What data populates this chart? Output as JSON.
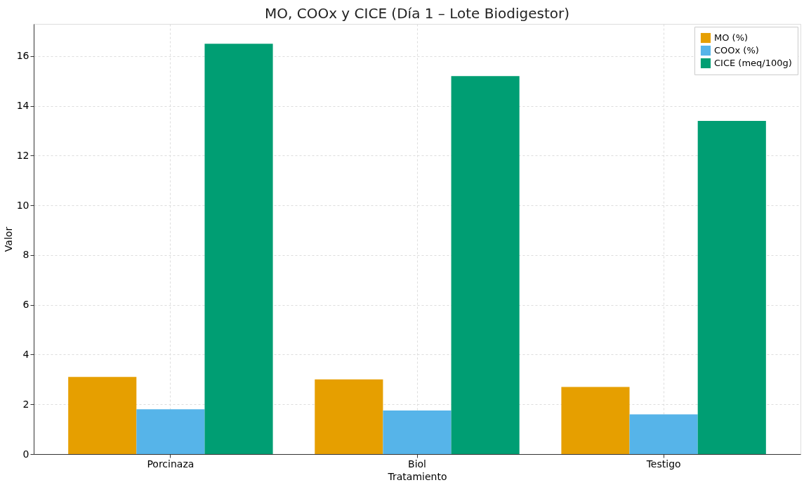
{
  "chart_data": {
    "type": "bar",
    "title": "MO, COOx y CICE (Día 1 – Lote Biodigestor)",
    "xlabel": "Tratamiento",
    "ylabel": "Valor",
    "categories": [
      "Porcinaza",
      "Biol",
      "Testigo"
    ],
    "series": [
      {
        "name": "MO (%)",
        "color": "#e69f00",
        "values": [
          3.1,
          3.0,
          2.7
        ]
      },
      {
        "name": "COOx (%)",
        "color": "#56b4e9",
        "values": [
          1.8,
          1.75,
          1.6
        ]
      },
      {
        "name": "CICE (meq/100g)",
        "color": "#009e73",
        "values": [
          16.5,
          15.2,
          13.4
        ]
      }
    ],
    "ylim": [
      0,
      17.3
    ],
    "yticks": [
      0,
      2,
      4,
      6,
      8,
      10,
      12,
      14,
      16
    ],
    "grid": true,
    "legend": "top right"
  }
}
